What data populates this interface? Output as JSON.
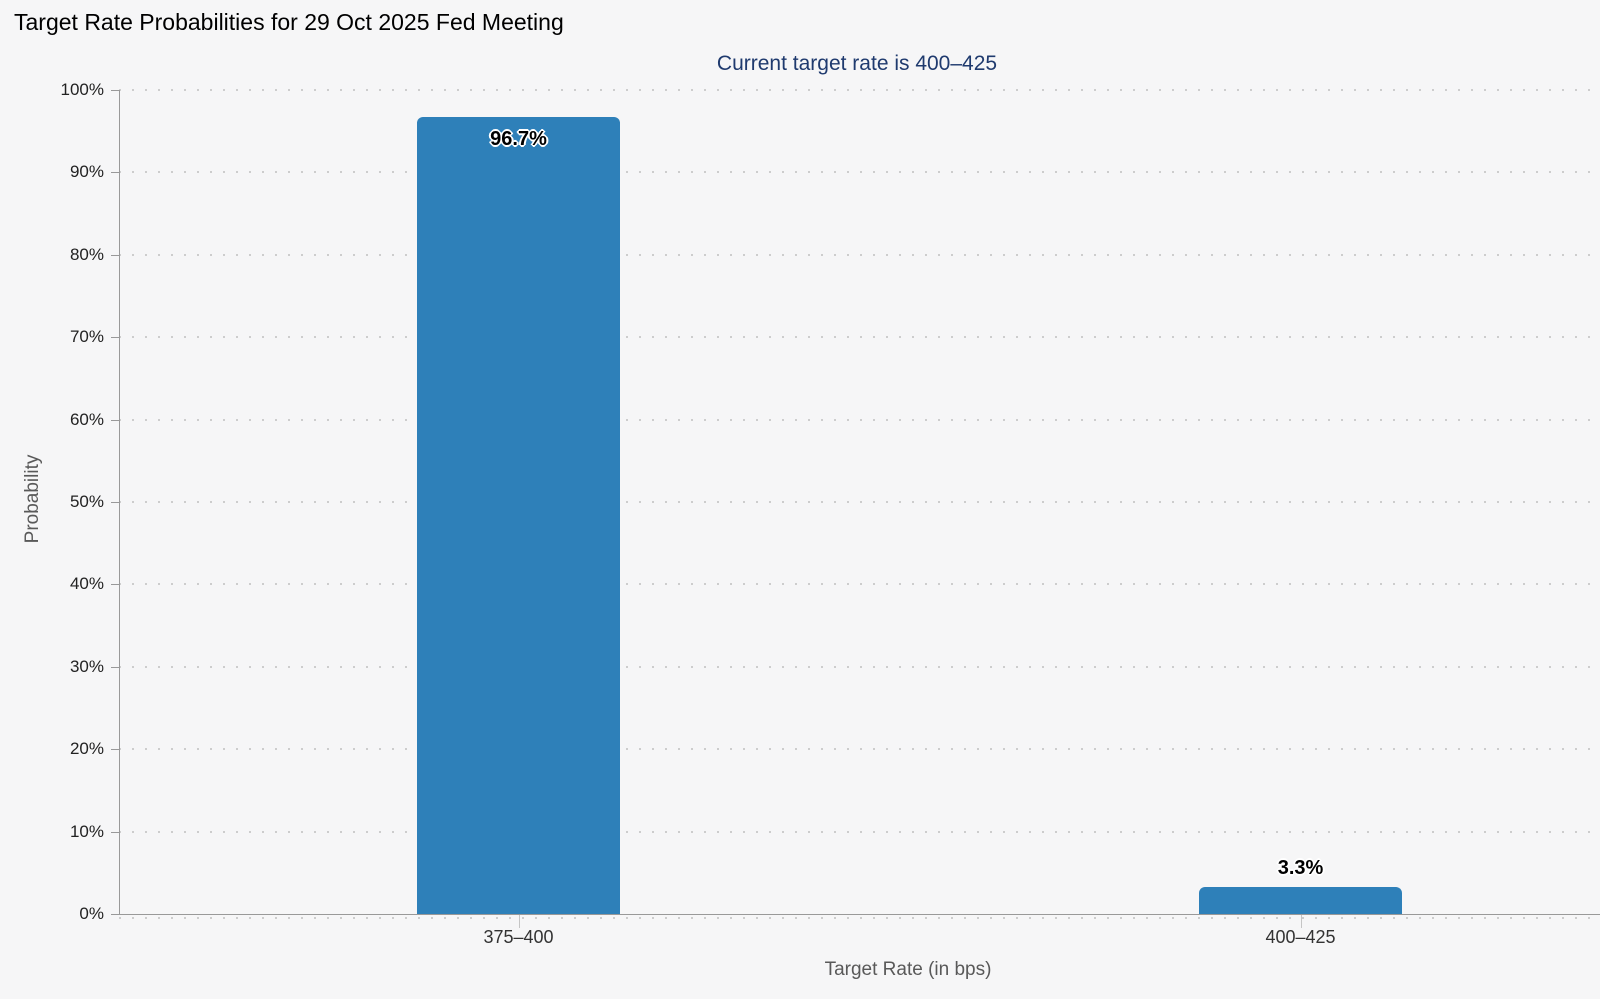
{
  "chart_data": {
    "type": "bar",
    "title": "Target Rate Probabilities for 29 Oct 2025 Fed Meeting",
    "subtitle": "Current target rate is 400–425",
    "xlabel": "Target Rate (in bps)",
    "ylabel": "Probability",
    "categories": [
      "375–400",
      "400–425"
    ],
    "values": [
      96.7,
      3.3
    ],
    "value_labels": [
      "96.7%",
      "3.3%"
    ],
    "ylim": [
      0,
      100
    ],
    "ytick_step": 10,
    "ytick_suffix": "%",
    "grid": "dotted-horizontal",
    "legend": "none",
    "colors": {
      "bar": "#2e80b9",
      "subtitle_text": "#1f3a6e",
      "axis_line": "#999999",
      "grid_dot": "#cdcdcd",
      "tick_label": "#222222",
      "axis_title": "#595959",
      "background": "#f6f6f7"
    }
  }
}
